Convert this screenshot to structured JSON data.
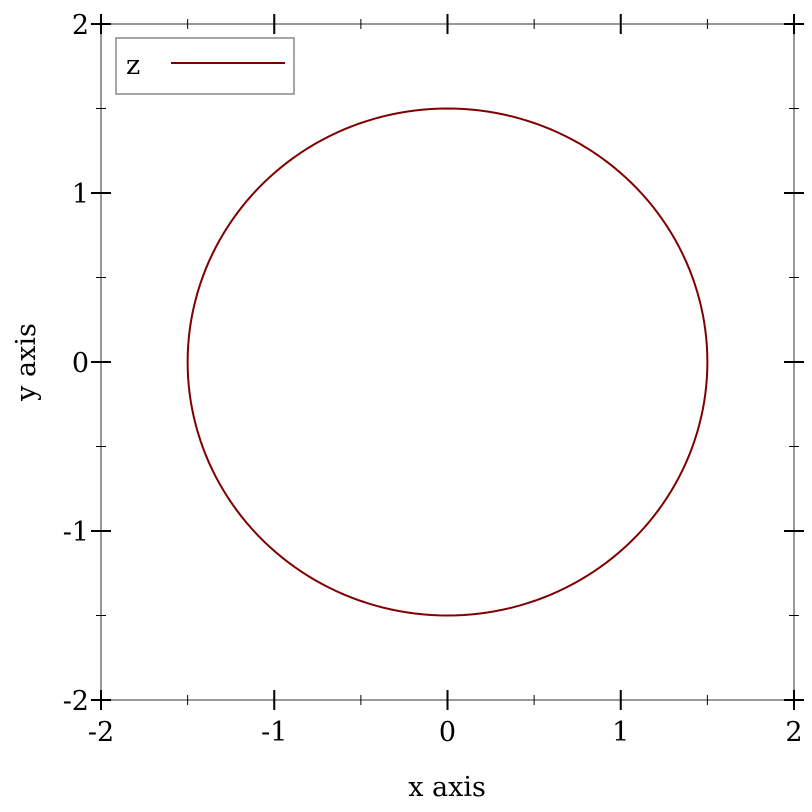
{
  "chart_data": {
    "type": "line",
    "title": "",
    "xlabel": "x axis",
    "ylabel": "y axis",
    "xlim": [
      -2,
      2
    ],
    "ylim": [
      -2,
      2
    ],
    "x_ticks": [
      -2,
      -1,
      0,
      1,
      2
    ],
    "y_ticks": [
      -2,
      -1,
      0,
      1,
      2
    ],
    "x_tick_labels": [
      "-2",
      "-1",
      "0",
      "1",
      "2"
    ],
    "y_tick_labels": [
      "-2",
      "-1",
      "0",
      "1",
      "2"
    ],
    "minor_ticks": [
      -1.5,
      -0.5,
      0.5,
      1.5
    ],
    "grid": false,
    "legend_position": "top-left",
    "series": [
      {
        "name": "z",
        "color": "#7f0000",
        "shape": "circle",
        "center": [
          0,
          0
        ],
        "radius": 1.5
      }
    ]
  }
}
